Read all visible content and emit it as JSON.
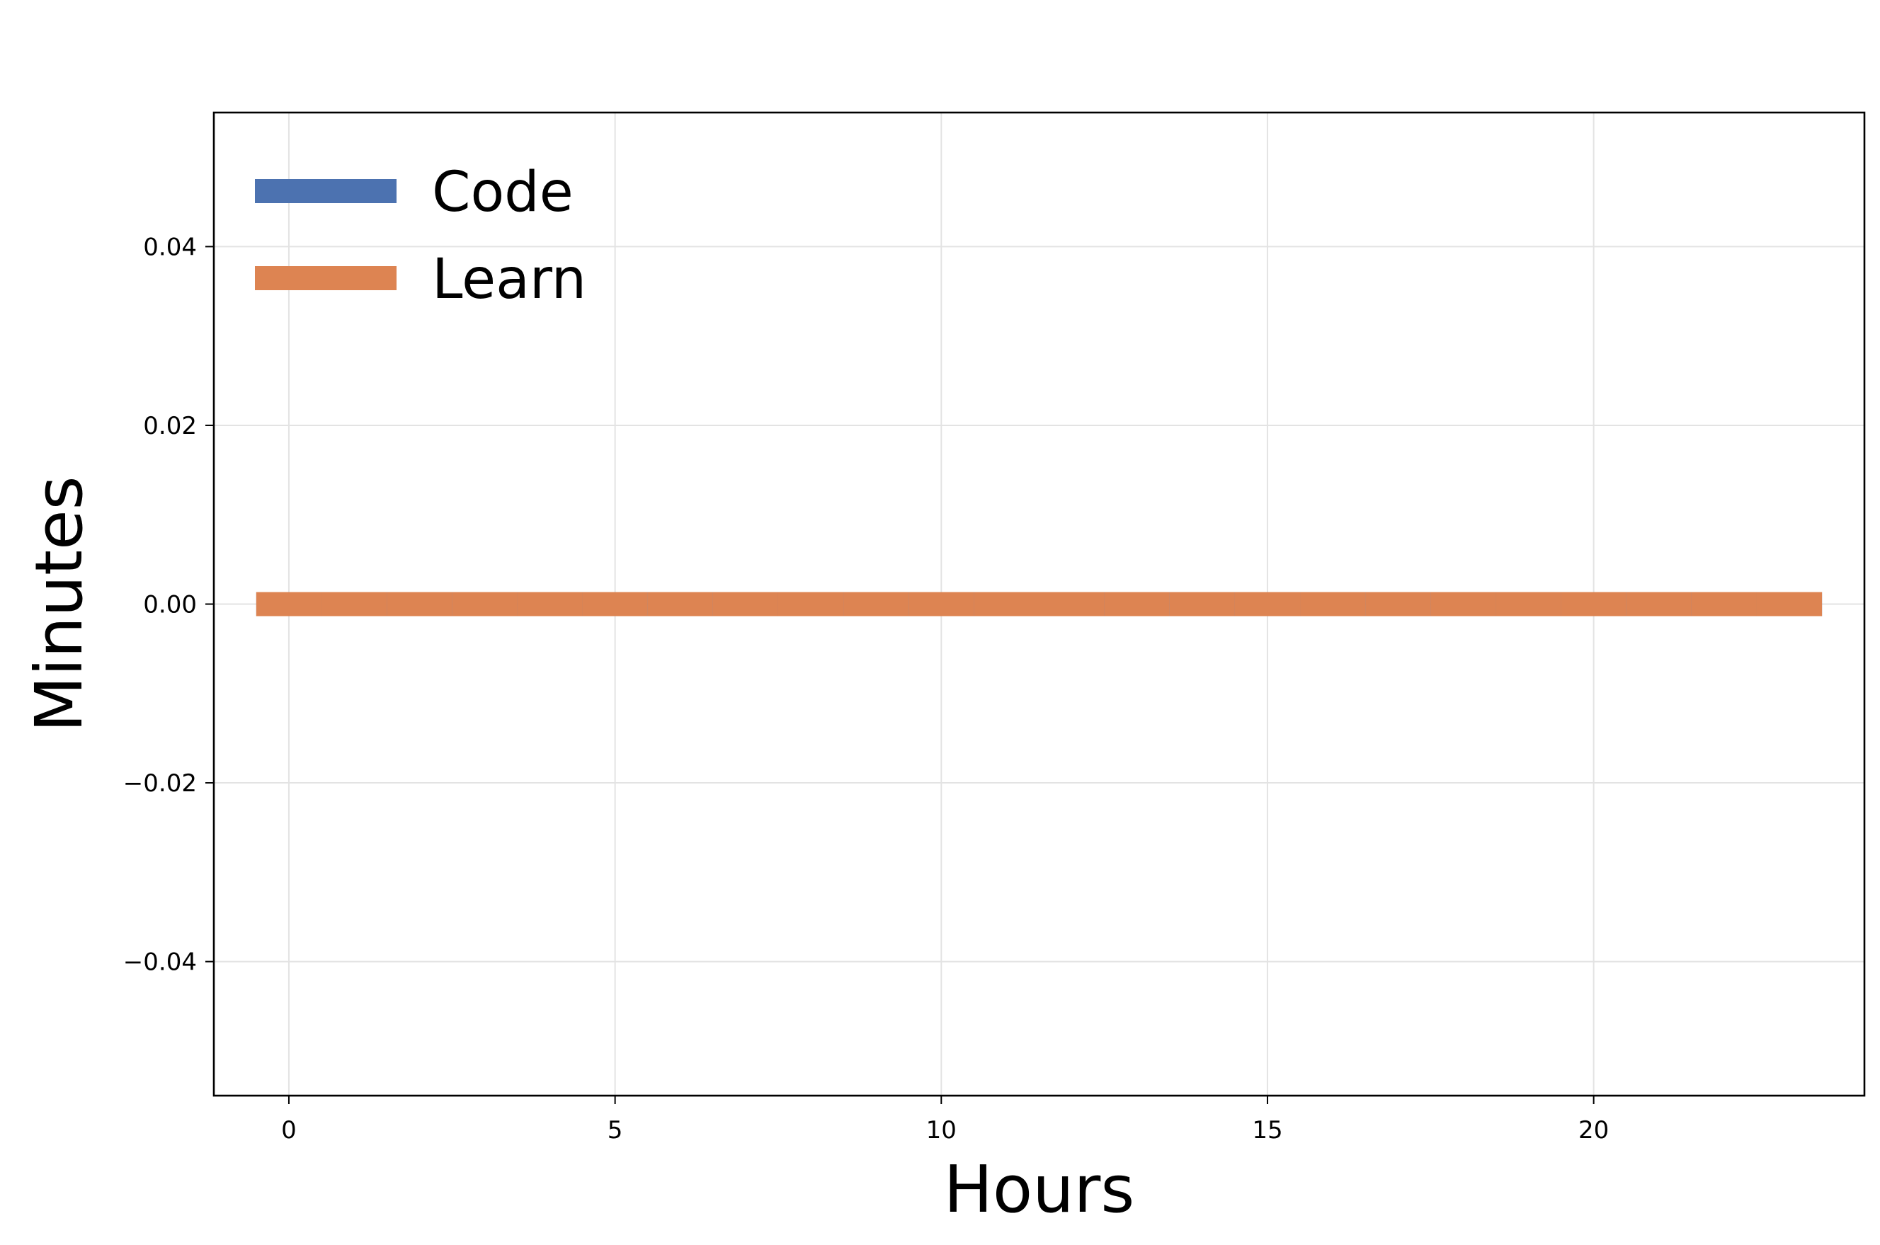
{
  "chart_data": {
    "type": "bar",
    "orientation": "horizontal",
    "stacked": true,
    "categories": [
      0,
      1,
      2,
      3,
      4,
      5,
      6,
      7,
      8,
      9,
      10,
      11,
      12,
      13,
      14,
      15,
      16,
      17,
      18,
      19,
      20,
      21,
      22,
      23
    ],
    "series": [
      {
        "name": "Code",
        "color": "#4c72b0",
        "values": [
          0,
          0,
          0,
          0,
          0,
          0,
          0,
          0,
          0,
          0,
          0,
          0,
          0,
          0,
          0,
          0,
          0,
          0,
          0,
          0,
          0,
          0,
          0,
          0
        ]
      },
      {
        "name": "Learn",
        "color": "#dd8452",
        "values": [
          0,
          0,
          0,
          0,
          0,
          0,
          0,
          0,
          0,
          0,
          0,
          0,
          0,
          0,
          0,
          0,
          0,
          0,
          0,
          0,
          0,
          0,
          0,
          0
        ]
      }
    ],
    "title": "",
    "xlabel": "Hours",
    "ylabel": "Minutes",
    "xlim": [
      -1.15,
      24.15
    ],
    "ylim": [
      -0.055,
      0.055
    ],
    "xticks": [
      0,
      5,
      10,
      15,
      20
    ],
    "xtick_labels": [
      "0",
      "5",
      "10",
      "15",
      "20"
    ],
    "yticks": [
      0.04,
      0.02,
      0.0,
      -0.02,
      -0.04
    ],
    "ytick_labels": [
      "0.04",
      "0.02",
      "0.00",
      "−0.02",
      "−0.04"
    ],
    "grid": true,
    "legend_position": "top-left"
  }
}
